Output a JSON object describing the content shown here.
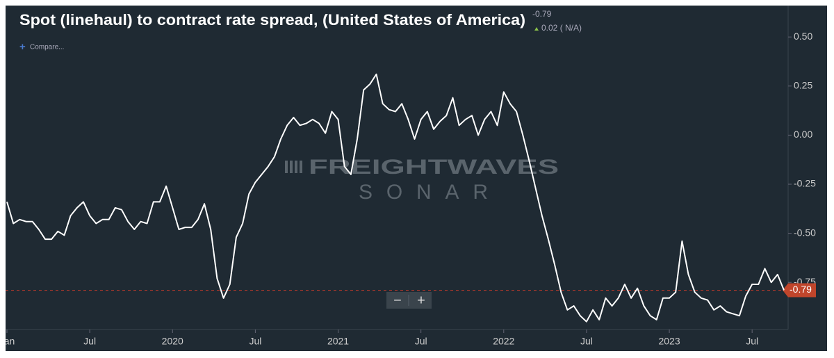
{
  "chart_data": {
    "type": "line",
    "title": "Spot (linehaul) to contract rate spread, (United States of America)",
    "last_value": -0.79,
    "change_label": "0.02 ( N/A)",
    "compare_label": "Compare...",
    "watermark": [
      "FREIGHTWAVES",
      "SONAR"
    ],
    "categories": [
      "Jan",
      null,
      null,
      null,
      null,
      null,
      null,
      null,
      null,
      null,
      null,
      null,
      null,
      "Jul",
      null,
      null,
      null,
      null,
      null,
      null,
      null,
      null,
      null,
      null,
      null,
      null,
      "2020",
      null,
      null,
      null,
      null,
      null,
      null,
      null,
      null,
      null,
      null,
      null,
      null,
      "Jul",
      null,
      null,
      null,
      null,
      null,
      null,
      null,
      null,
      null,
      null,
      null,
      null,
      "2021",
      null,
      null,
      null,
      null,
      null,
      null,
      null,
      null,
      null,
      null,
      null,
      null,
      "Jul",
      null,
      null,
      null,
      null,
      null,
      null,
      null,
      null,
      null,
      null,
      null,
      null,
      "2022",
      null,
      null,
      null,
      null,
      null,
      null,
      null,
      null,
      null,
      null,
      null,
      null,
      "Jul",
      null,
      null,
      null,
      null,
      null,
      null,
      null,
      null,
      null,
      null,
      null,
      null,
      "2023",
      null,
      null,
      null,
      null,
      null,
      null,
      null,
      null,
      null,
      null,
      null,
      null,
      "Jul",
      null,
      null,
      null,
      null,
      null
    ],
    "series": [
      {
        "name": "Spot (linehaul) to contract rate spread",
        "color": "#ffffff",
        "values": [
          -0.34,
          -0.45,
          -0.43,
          -0.44,
          -0.44,
          -0.48,
          -0.53,
          -0.53,
          -0.49,
          -0.51,
          -0.41,
          -0.37,
          -0.34,
          -0.41,
          -0.45,
          -0.43,
          -0.43,
          -0.37,
          -0.38,
          -0.44,
          -0.48,
          -0.44,
          -0.45,
          -0.34,
          -0.34,
          -0.26,
          -0.37,
          -0.48,
          -0.47,
          -0.47,
          -0.43,
          -0.35,
          -0.48,
          -0.73,
          -0.83,
          -0.76,
          -0.52,
          -0.45,
          -0.3,
          -0.24,
          -0.2,
          -0.16,
          -0.11,
          -0.02,
          0.05,
          0.09,
          0.05,
          0.06,
          0.08,
          0.06,
          0.01,
          0.12,
          0.08,
          -0.16,
          -0.2,
          -0.02,
          0.23,
          0.26,
          0.31,
          0.16,
          0.13,
          0.12,
          0.16,
          0.08,
          -0.02,
          0.08,
          0.12,
          0.03,
          0.07,
          0.1,
          0.19,
          0.05,
          0.08,
          0.1,
          0.0,
          0.08,
          0.12,
          0.05,
          0.22,
          0.16,
          0.12,
          0.0,
          -0.13,
          -0.27,
          -0.41,
          -0.53,
          -0.66,
          -0.8,
          -0.89,
          -0.87,
          -0.92,
          -0.95,
          -0.89,
          -0.94,
          -0.83,
          -0.87,
          -0.83,
          -0.76,
          -0.83,
          -0.78,
          -0.87,
          -0.92,
          -0.94,
          -0.83,
          -0.83,
          -0.8,
          -0.54,
          -0.71,
          -0.8,
          -0.83,
          -0.84,
          -0.89,
          -0.87,
          -0.9,
          -0.91,
          -0.92,
          -0.82,
          -0.76,
          -0.76,
          -0.68,
          -0.75,
          -0.71,
          -0.79
        ]
      }
    ],
    "ylim": [
      -0.99,
      0.66
    ],
    "yticks": [
      {
        "value": 0.5,
        "label": "0.50"
      },
      0.25,
      {
        "value": 0,
        "label": "0.00"
      },
      -0.25,
      {
        "value": -0.5,
        "label": "-0.50"
      },
      -0.75
    ],
    "grid": false
  }
}
